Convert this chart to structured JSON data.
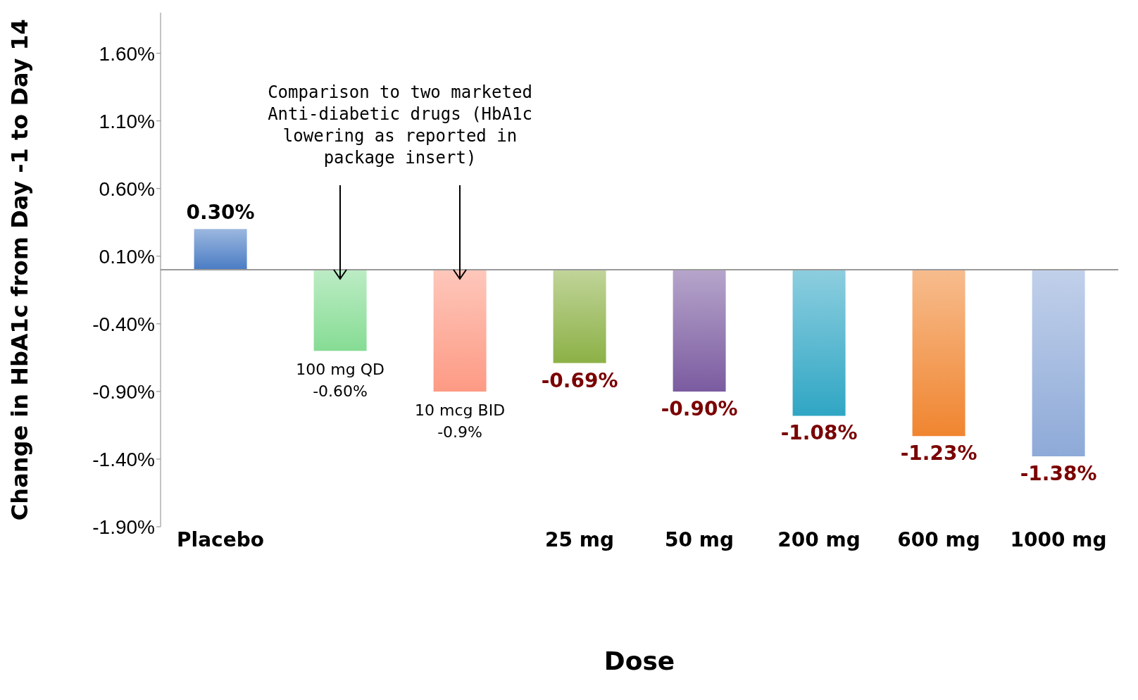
{
  "chart_data": {
    "type": "bar",
    "xlabel": "Dose",
    "ylabel": "Change in HbA1c from Day -1 to Day 14",
    "categories": [
      "Placebo",
      null,
      null,
      "25 mg",
      "50 mg",
      "200 mg",
      "600 mg",
      "1000 mg"
    ],
    "values": [
      0.3,
      -0.6,
      -0.9,
      -0.69,
      -0.9,
      -1.08,
      -1.23,
      -1.38
    ],
    "colors": [
      "#4a7cc4",
      "#86dc94",
      "#fd9a84",
      "#8cb146",
      "#7b5ba0",
      "#2fa6c4",
      "#f08530",
      "#8eaad8"
    ],
    "value_labels": [
      "0.30%",
      "100 mg QD -0.60%",
      "10 mcg BID -0.9%",
      "-0.69%",
      "-0.90%",
      "-1.08%",
      "-1.23%",
      "-1.38%"
    ],
    "ylim": [
      -1.9,
      1.9
    ],
    "yticks": [
      {
        "value": -1.9,
        "label": "-1.90%"
      },
      {
        "value": -1.4,
        "label": "-1.40%"
      },
      {
        "value": -0.9,
        "label": "-0.90%"
      },
      {
        "value": -0.4,
        "label": "-0.40%"
      },
      {
        "value": 0.1,
        "label": "0.10%"
      },
      {
        "value": 0.6,
        "label": "0.60%"
      },
      {
        "value": 1.1,
        "label": "1.10%"
      },
      {
        "value": 1.6,
        "label": "1.60%"
      }
    ],
    "annotations": [
      "Comparison to two marketed Anti-diabetic drugs (HbA1c lowering as reported in package insert)"
    ],
    "grid": false,
    "legend": false
  }
}
